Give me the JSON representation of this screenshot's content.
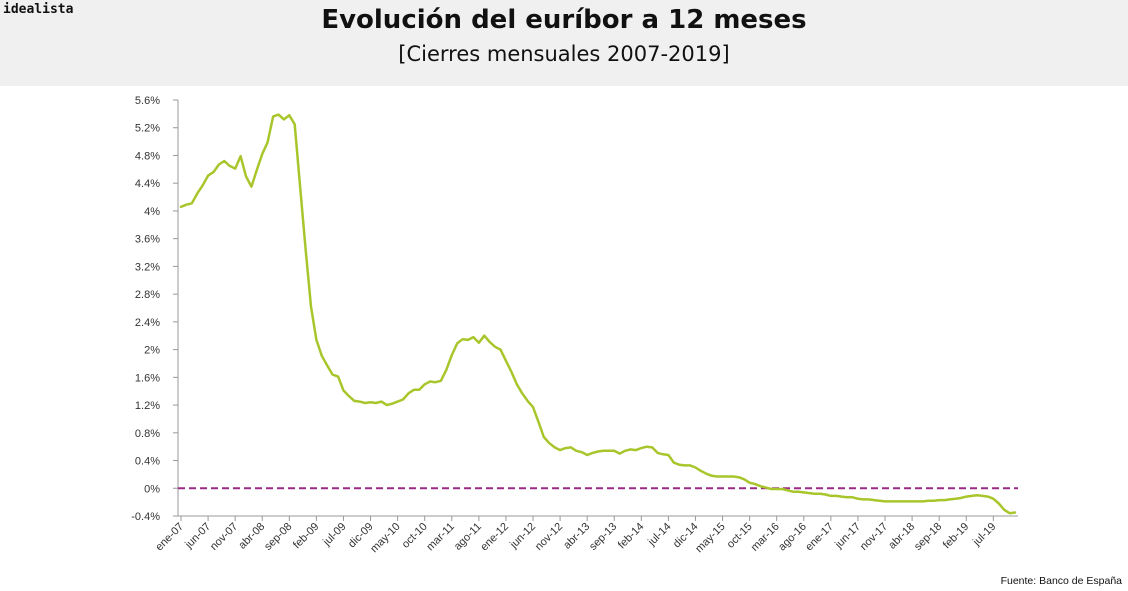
{
  "brand": "idealista",
  "source": "Fuente: Banco de España",
  "colors": {
    "line": "#a8c62c",
    "zero_line": "#9b2a86",
    "header_bg": "#f0f0f0",
    "axis": "#999999"
  },
  "chart_data": {
    "type": "line",
    "title": "Evolución del euríbor a 12 meses",
    "subtitle": "[Cierres mensuales 2007-2019]",
    "x_tick_labels": [
      "ene-07",
      "jun-07",
      "nov-07",
      "abr-08",
      "sep-08",
      "feb-09",
      "jul-09",
      "dic-09",
      "may-10",
      "oct-10",
      "mar-11",
      "ago-11",
      "ene-12",
      "jun-12",
      "nov-12",
      "abr-13",
      "sep-13",
      "feb-14",
      "jul-14",
      "dic-14",
      "may-15",
      "oct-15",
      "mar-16",
      "ago-16",
      "ene-17",
      "jun-17",
      "nov-17",
      "abr-18",
      "sep-18",
      "feb-19",
      "jul-19"
    ],
    "x_tick_step_months": 5,
    "y_tick_labels": [
      "5.6%",
      "5.2%",
      "4.8%",
      "4.4%",
      "4%",
      "3.6%",
      "3.2%",
      "2.8%",
      "2.4%",
      "2%",
      "1.6%",
      "1.2%",
      "0.8%",
      "0.4%",
      "0%",
      "-0.4%"
    ],
    "ylim": [
      -0.4,
      5.6
    ],
    "reference_line": {
      "y": 0,
      "style": "dashed"
    },
    "grid": false,
    "series": [
      {
        "start": "ene-07",
        "frequency": "monthly",
        "unit": "%",
        "values": [
          4.06,
          4.09,
          4.11,
          4.25,
          4.37,
          4.51,
          4.56,
          4.67,
          4.72,
          4.65,
          4.61,
          4.79,
          4.5,
          4.35,
          4.59,
          4.82,
          4.99,
          5.36,
          5.39,
          5.32,
          5.38,
          5.25,
          4.35,
          3.45,
          2.62,
          2.14,
          1.91,
          1.77,
          1.64,
          1.61,
          1.41,
          1.33,
          1.26,
          1.25,
          1.23,
          1.24,
          1.23,
          1.25,
          1.2,
          1.22,
          1.25,
          1.28,
          1.37,
          1.42,
          1.42,
          1.5,
          1.54,
          1.53,
          1.55,
          1.71,
          1.92,
          2.09,
          2.15,
          2.14,
          2.18,
          2.1,
          2.2,
          2.11,
          2.04,
          2.0,
          1.84,
          1.68,
          1.5,
          1.37,
          1.26,
          1.17,
          0.96,
          0.74,
          0.65,
          0.59,
          0.55,
          0.58,
          0.59,
          0.54,
          0.52,
          0.48,
          0.51,
          0.53,
          0.54,
          0.54,
          0.54,
          0.5,
          0.54,
          0.56,
          0.55,
          0.58,
          0.6,
          0.59,
          0.51,
          0.49,
          0.48,
          0.37,
          0.34,
          0.33,
          0.33,
          0.3,
          0.25,
          0.21,
          0.18,
          0.17,
          0.17,
          0.17,
          0.17,
          0.16,
          0.13,
          0.08,
          0.06,
          0.03,
          0.01,
          -0.01,
          -0.01,
          -0.01,
          -0.03,
          -0.05,
          -0.05,
          -0.06,
          -0.07,
          -0.08,
          -0.08,
          -0.09,
          -0.11,
          -0.11,
          -0.12,
          -0.13,
          -0.13,
          -0.15,
          -0.16,
          -0.16,
          -0.17,
          -0.18,
          -0.19,
          -0.19,
          -0.19,
          -0.19,
          -0.19,
          -0.19,
          -0.19,
          -0.19,
          -0.18,
          -0.18,
          -0.17,
          -0.17,
          -0.16,
          -0.15,
          -0.14,
          -0.12,
          -0.11,
          -0.1,
          -0.11,
          -0.12,
          -0.15,
          -0.22,
          -0.31,
          -0.36,
          -0.35
        ]
      }
    ]
  }
}
